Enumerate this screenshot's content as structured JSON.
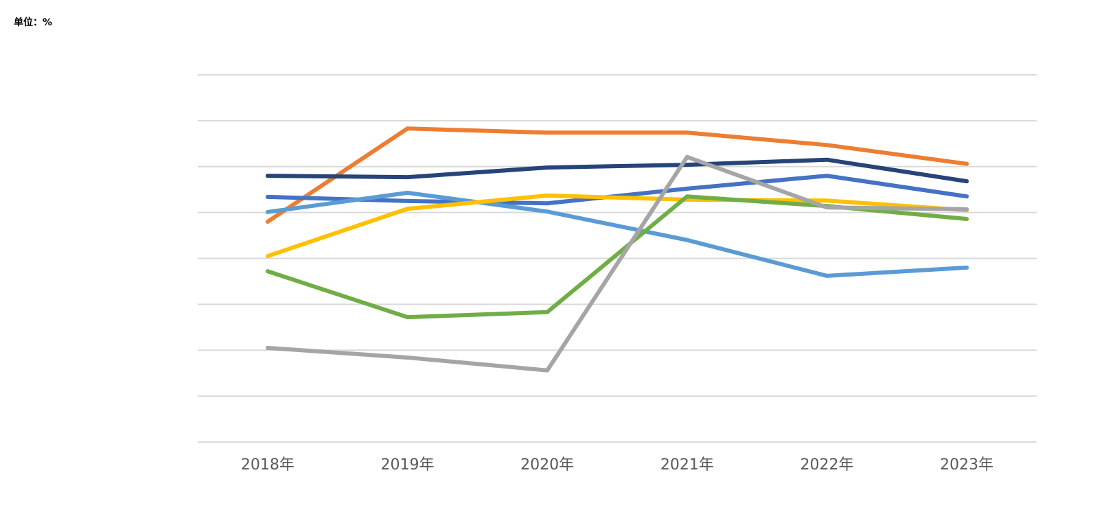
{
  "chart_data": {
    "type": "line",
    "subtitle": "单位：%",
    "categories": [
      "2018年",
      "2019年",
      "2020年",
      "2021年",
      "2022年",
      "2023年"
    ],
    "ylim": [
      0,
      8
    ],
    "yticks": [
      0,
      1,
      2,
      3,
      4,
      5,
      6,
      7,
      8
    ],
    "grid": true,
    "y_tick_labels": false,
    "series": [
      {
        "color": "#ed7d31",
        "values": [
          4.8,
          6.83,
          6.74,
          6.74,
          6.47,
          6.06
        ]
      },
      {
        "color": "#264478",
        "values": [
          5.8,
          5.77,
          5.98,
          6.04,
          6.15,
          5.68
        ]
      },
      {
        "color": "#4472c4",
        "values": [
          5.34,
          5.25,
          5.2,
          5.52,
          5.8,
          5.35
        ]
      },
      {
        "color": "#5b9bd5",
        "values": [
          5.01,
          5.43,
          5.02,
          4.4,
          3.62,
          3.8
        ]
      },
      {
        "color": "#ffc000",
        "values": [
          4.05,
          5.08,
          5.37,
          5.28,
          5.26,
          5.05
        ]
      },
      {
        "color": "#70ad47",
        "values": [
          3.72,
          2.72,
          2.83,
          5.35,
          5.14,
          4.86
        ]
      },
      {
        "color": "#a5a5a5",
        "values": [
          2.05,
          1.84,
          1.56,
          6.21,
          5.11,
          5.07
        ]
      }
    ]
  }
}
